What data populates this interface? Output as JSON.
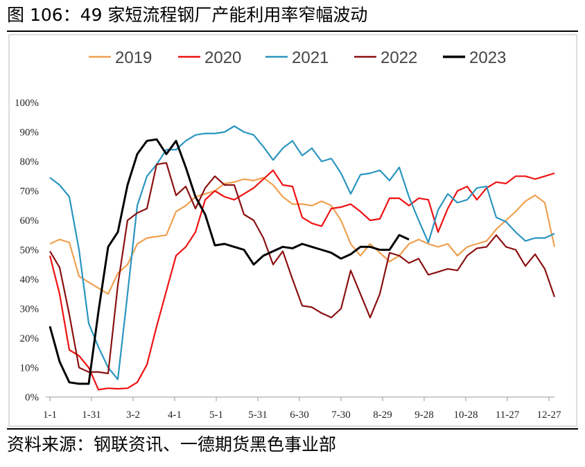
{
  "chart_data": {
    "type": "line",
    "title": "图 106：49 家短流程钢厂产能利用率窄幅波动",
    "source": "资料来源：钢联资讯、一德期货黑色事业部",
    "x": [
      0,
      7,
      14,
      21,
      28,
      35,
      42,
      49,
      56,
      63,
      70,
      77,
      84,
      91,
      98,
      105,
      112,
      119,
      126,
      133,
      140,
      147,
      154,
      161,
      168,
      175,
      182,
      189,
      196,
      203,
      210,
      217,
      224,
      231,
      238,
      245,
      252,
      259,
      266,
      273,
      280,
      287,
      294,
      301,
      308,
      315,
      322,
      329,
      336,
      343,
      350,
      357,
      364
    ],
    "xlim": [
      0,
      364
    ],
    "xticks": [
      {
        "value": 0,
        "label": "1-1"
      },
      {
        "value": 30,
        "label": "1-31"
      },
      {
        "value": 60,
        "label": "3-2"
      },
      {
        "value": 90,
        "label": "4-1"
      },
      {
        "value": 120,
        "label": "5-1"
      },
      {
        "value": 150,
        "label": "5-31"
      },
      {
        "value": 180,
        "label": "6-30"
      },
      {
        "value": 210,
        "label": "7-30"
      },
      {
        "value": 240,
        "label": "8-29"
      },
      {
        "value": 270,
        "label": "9-28"
      },
      {
        "value": 300,
        "label": "10-28"
      },
      {
        "value": 330,
        "label": "11-27"
      },
      {
        "value": 360,
        "label": "12-27"
      }
    ],
    "ylim": [
      0,
      100
    ],
    "yticks": [
      {
        "value": 0,
        "label": "0%"
      },
      {
        "value": 10,
        "label": "10%"
      },
      {
        "value": 20,
        "label": "20%"
      },
      {
        "value": 30,
        "label": "30%"
      },
      {
        "value": 40,
        "label": "40%"
      },
      {
        "value": 50,
        "label": "50%"
      },
      {
        "value": 60,
        "label": "60%"
      },
      {
        "value": 70,
        "label": "70%"
      },
      {
        "value": 80,
        "label": "80%"
      },
      {
        "value": 90,
        "label": "90%"
      },
      {
        "value": 100,
        "label": "100%"
      }
    ],
    "grid": false,
    "legend": "top",
    "series": [
      {
        "name": "2019",
        "color": "#f0a050",
        "values": [
          52,
          53.5,
          52.5,
          41,
          39,
          37,
          35,
          42,
          45,
          52,
          54,
          54.5,
          55,
          63,
          65,
          68,
          69,
          70,
          72.5,
          73,
          74,
          73.5,
          74.5,
          72,
          68,
          65.5,
          65.5,
          65,
          66.5,
          65,
          60,
          52,
          48,
          52,
          49,
          46,
          48,
          52,
          53.5,
          52,
          51,
          52,
          48,
          51,
          52,
          53,
          57,
          60,
          63,
          66.5,
          68.5,
          66,
          51
        ]
      },
      {
        "name": "2020",
        "color": "#ee1111",
        "values": [
          48,
          35,
          16,
          14,
          10,
          2.5,
          3,
          2.8,
          3,
          5,
          11,
          24,
          36,
          48,
          51,
          56,
          67,
          70,
          68,
          67,
          69,
          71,
          74,
          77,
          72,
          71.5,
          61,
          59,
          58,
          64,
          64.5,
          65.5,
          63,
          60,
          60.5,
          67.5,
          67.5,
          65,
          67.5,
          67,
          56,
          64,
          70,
          71.5,
          67,
          71,
          73,
          72.5,
          75,
          75,
          74,
          75,
          76
        ]
      },
      {
        "name": "2021",
        "color": "#2a95bf",
        "values": [
          74.5,
          72,
          68,
          50,
          25,
          17,
          10,
          6,
          35,
          65,
          75,
          79,
          84,
          84,
          87,
          89,
          89.5,
          89.5,
          90,
          92,
          90,
          89,
          85,
          80.5,
          84.5,
          87,
          82,
          84.5,
          80,
          81,
          76,
          69,
          75.5,
          76,
          77,
          73.5,
          78,
          68,
          60,
          52.5,
          63.5,
          69,
          66,
          67,
          71,
          71.5,
          61,
          59.5,
          56,
          53,
          54,
          54,
          55.5
        ]
      },
      {
        "name": "2022",
        "color": "#8b1010",
        "values": [
          49.5,
          44,
          28,
          10,
          8.5,
          8.5,
          8,
          38,
          60,
          62.5,
          64,
          79,
          79.5,
          68.5,
          71.5,
          64,
          71,
          75,
          72,
          72,
          62,
          60,
          54,
          45,
          49.5,
          40,
          31,
          30.5,
          28.5,
          27,
          30,
          43,
          35,
          27,
          35,
          49,
          48,
          45.5,
          47,
          41.5,
          42.5,
          43.5,
          43,
          48,
          50.5,
          51,
          55,
          51,
          50,
          44.5,
          48.5,
          43.5,
          34
        ]
      },
      {
        "name": "2023",
        "color": "#000000",
        "values": [
          24,
          12,
          5,
          4.5,
          4.5,
          29,
          51,
          56,
          72,
          82.5,
          87,
          87.5,
          82.5,
          87,
          78,
          68,
          62,
          51.5,
          52,
          51,
          50,
          45,
          48,
          49.5,
          51,
          50.5,
          52,
          51,
          50,
          49,
          47,
          48.5,
          51,
          51,
          50,
          50,
          55,
          53.5,
          null,
          null,
          null,
          null,
          null,
          null,
          null,
          null,
          null,
          null,
          null,
          null,
          null,
          null,
          null
        ]
      }
    ]
  }
}
